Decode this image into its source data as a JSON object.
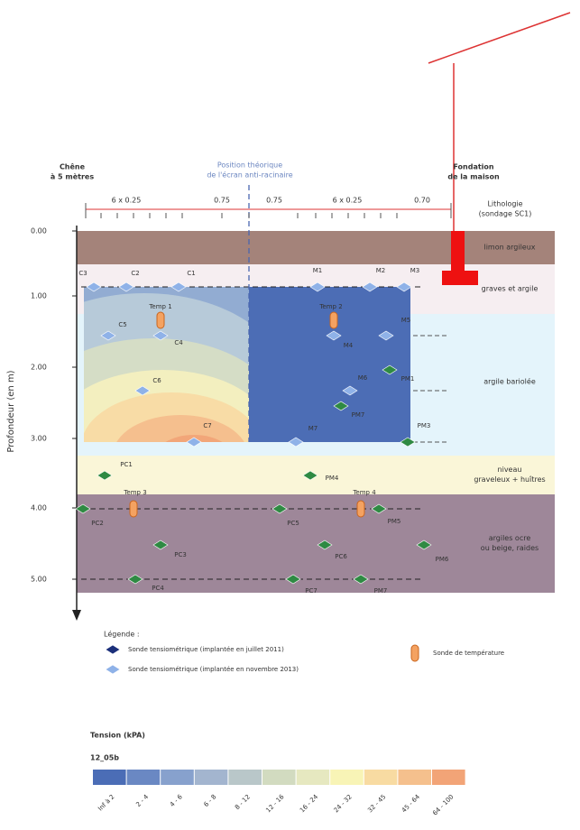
{
  "header": {
    "left": [
      "Chêne",
      "à 5 mètres"
    ],
    "center": [
      "Position théorique",
      "de l'écran anti-racinaire"
    ],
    "right": [
      "Fondation",
      "de la maison"
    ]
  },
  "dimensions": [
    "6 x 0.25",
    "0.75",
    "0.75",
    "6 x 0.25",
    "0.70"
  ],
  "lithology_title": [
    "Lithologie",
    "(sondage SC1)"
  ],
  "depth_axis": {
    "title": "Profondeur (en m)",
    "labels": [
      "0.00",
      "1.00",
      "2.00",
      "3.00",
      "4.00",
      "5.00"
    ]
  },
  "layers": [
    [
      "limon argileux"
    ],
    [
      "graves et argile"
    ],
    [
      "argile bariolée"
    ],
    [
      "niveau",
      "graveleux + huîtres"
    ],
    [
      "argiles ocre",
      "ou beige, raides"
    ]
  ],
  "sensors": [
    "C3",
    "C2",
    "C1",
    "M1",
    "M2",
    "M3",
    "C5",
    "C4",
    "Temp 1",
    "Temp 2",
    "M4",
    "M5",
    "C6",
    "M6",
    "PM1",
    "PM7",
    "C7",
    "M7",
    "PM3",
    "PC1",
    "PM4",
    "PC2",
    "Temp 3",
    "PC5",
    "Temp 4",
    "PM5",
    "PC3",
    "PC6",
    "PM6",
    "PC4",
    "PC7",
    "PM7"
  ],
  "legend": {
    "title": "Légende :",
    "items": [
      "Sonde tensiométrique (implantée en juillet 2011)",
      "Sonde tensiométrique (implantée en novembre 2013)",
      "Sonde de température"
    ]
  },
  "colorbar": {
    "title": "Tension (kPA)",
    "subtitle": "12_05b",
    "classes": [
      "Inf à 2",
      "2 - 4",
      "4 - 6",
      "6 - 8",
      "8 - 12",
      "12 - 16",
      "16 - 24",
      "24 - 32",
      "32 - 45",
      "45 - 64",
      "64 - 100"
    ]
  }
}
